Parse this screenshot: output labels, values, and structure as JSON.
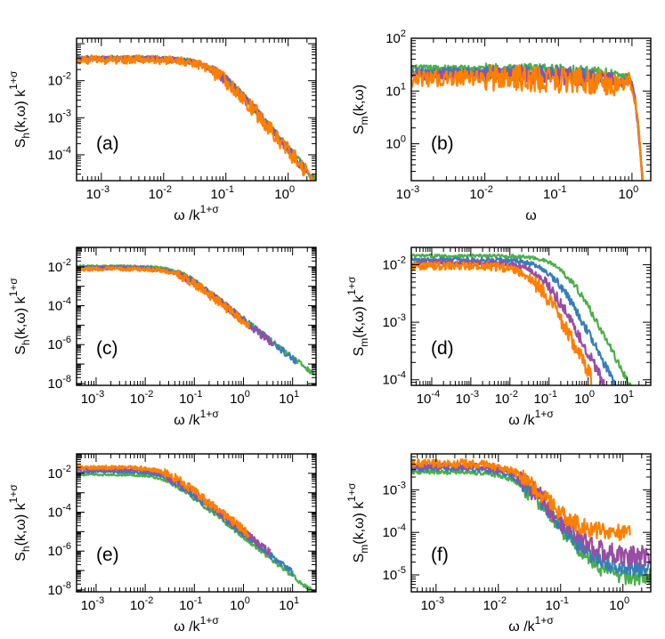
{
  "colors": {
    "green": "#4daf4a",
    "blue": "#377eb8",
    "purple": "#984ea3",
    "orange": "#ff7f00"
  },
  "chart_data": [
    {
      "panel": "(a)",
      "type": "line",
      "xscale": "log",
      "yscale": "log",
      "xlim": [
        0.0004,
        2.8
      ],
      "ylim": [
        2e-05,
        0.14
      ],
      "xticks": [
        {
          "v": 0.001,
          "b": "10",
          "e": "-3"
        },
        {
          "v": 0.01,
          "b": "10",
          "e": "-2"
        },
        {
          "v": 0.1,
          "b": "10",
          "e": "-1"
        },
        {
          "v": 1,
          "b": "10",
          "e": "0"
        }
      ],
      "yticks": [
        {
          "v": 0.0001,
          "b": "10",
          "e": "-4"
        },
        {
          "v": 0.001,
          "b": "10",
          "e": "-3"
        },
        {
          "v": 0.01,
          "b": "10",
          "e": "-2"
        }
      ],
      "xlabel": {
        "main": "ω /k",
        "sup": "1+σ"
      },
      "ylabel": {
        "main": "S",
        "sub": "h",
        "rest": "(k,ω) k",
        "sup": "1+σ"
      },
      "series": [
        {
          "color": "green",
          "plateau": 0.042,
          "knee": 0.06,
          "slope": 2.0,
          "xmax": 2.8,
          "noise": 0.05,
          "late_noise": 0.1
        },
        {
          "color": "blue",
          "plateau": 0.04,
          "knee": 0.06,
          "slope": 2.0,
          "xmax": 2.5,
          "noise": 0.06,
          "late_noise": 0.12
        },
        {
          "color": "purple",
          "plateau": 0.039,
          "knee": 0.06,
          "slope": 2.0,
          "xmax": 2.0,
          "noise": 0.08,
          "late_noise": 0.14
        },
        {
          "color": "orange",
          "plateau": 0.037,
          "knee": 0.06,
          "slope": 2.0,
          "xmax": 2.5,
          "noise": 0.12,
          "late_noise": 0.22
        }
      ]
    },
    {
      "panel": "(b)",
      "type": "line",
      "xscale": "log",
      "yscale": "log",
      "xlim": [
        0.001,
        1.8
      ],
      "ylim": [
        0.2,
        100
      ],
      "xticks": [
        {
          "v": 0.001,
          "b": "10",
          "e": "-3"
        },
        {
          "v": 0.01,
          "b": "10",
          "e": "-2"
        },
        {
          "v": 0.1,
          "b": "10",
          "e": "-1"
        },
        {
          "v": 1,
          "b": "10",
          "e": "0"
        }
      ],
      "yticks": [
        {
          "v": 1,
          "b": "10",
          "e": "0"
        },
        {
          "v": 10,
          "b": "10",
          "e": "1"
        },
        {
          "v": 100,
          "b": "10",
          "e": "2"
        }
      ],
      "xlabel": {
        "main": "ω",
        "sup": ""
      },
      "ylabel": {
        "main": "S",
        "sub": "m",
        "rest": "(k,ω)",
        "sup": ""
      },
      "series": [
        {
          "color": "green",
          "start": 27,
          "peak_x": 0.9,
          "peak_y": 17,
          "noise": 0.06
        },
        {
          "color": "blue",
          "start": 23,
          "peak_x": 0.9,
          "peak_y": 17,
          "noise": 0.08
        },
        {
          "color": "purple",
          "start": 20,
          "peak_x": 0.9,
          "peak_y": 17,
          "noise": 0.1
        },
        {
          "color": "orange",
          "start": 17.5,
          "peak_x": 0.9,
          "peak_y": 17,
          "noise": 0.16
        }
      ]
    },
    {
      "panel": "(c)",
      "type": "line",
      "xscale": "log",
      "yscale": "log",
      "xlim": [
        0.0004,
        30
      ],
      "ylim": [
        8e-09,
        0.1
      ],
      "xticks": [
        {
          "v": 0.001,
          "b": "10",
          "e": "-3"
        },
        {
          "v": 0.01,
          "b": "10",
          "e": "-2"
        },
        {
          "v": 0.1,
          "b": "10",
          "e": "-1"
        },
        {
          "v": 1,
          "b": "10",
          "e": "0"
        },
        {
          "v": 10,
          "b": "10",
          "e": "1"
        }
      ],
      "yticks": [
        {
          "v": 1e-08,
          "b": "10",
          "e": "-8"
        },
        {
          "v": 1e-06,
          "b": "10",
          "e": "-6"
        },
        {
          "v": 0.0001,
          "b": "10",
          "e": "-4"
        },
        {
          "v": 0.01,
          "b": "10",
          "e": "-2"
        }
      ],
      "xlabel": {
        "main": "ω /k",
        "sup": "1+σ"
      },
      "ylabel": {
        "main": "S",
        "sub": "h",
        "rest": "(k,ω) k",
        "sup": "1+σ"
      },
      "series": [
        {
          "color": "green",
          "plateau": 0.011,
          "knee": 0.045,
          "slope": 2.0,
          "xmax": 28,
          "noise": 0.05,
          "late_noise": 0.12
        },
        {
          "color": "blue",
          "plateau": 0.0095,
          "knee": 0.045,
          "slope": 2.0,
          "xmax": 12,
          "noise": 0.06,
          "late_noise": 0.18
        },
        {
          "color": "purple",
          "plateau": 0.0085,
          "knee": 0.045,
          "slope": 2.0,
          "xmax": 4,
          "noise": 0.08,
          "late_noise": 0.2
        },
        {
          "color": "orange",
          "plateau": 0.0078,
          "knee": 0.045,
          "slope": 2.0,
          "xmax": 1.3,
          "noise": 0.1,
          "late_noise": 0.24
        }
      ]
    },
    {
      "panel": "(d)",
      "type": "line",
      "xscale": "log",
      "yscale": "log",
      "xlim": [
        3e-05,
        40
      ],
      "ylim": [
        8e-05,
        0.02
      ],
      "xticks": [
        {
          "v": 0.0001,
          "b": "10",
          "e": "-4"
        },
        {
          "v": 0.001,
          "b": "10",
          "e": "-3"
        },
        {
          "v": 0.01,
          "b": "10",
          "e": "-2"
        },
        {
          "v": 0.1,
          "b": "10",
          "e": "-1"
        },
        {
          "v": 1,
          "b": "10",
          "e": "0"
        },
        {
          "v": 10,
          "b": "10",
          "e": "1"
        }
      ],
      "yticks": [
        {
          "v": 0.0001,
          "b": "10",
          "e": "-4"
        },
        {
          "v": 0.001,
          "b": "10",
          "e": "-3"
        },
        {
          "v": 0.01,
          "b": "10",
          "e": "-2"
        }
      ],
      "xlabel": {
        "main": "ω /k",
        "sup": "1+σ"
      },
      "ylabel": {
        "main": "S",
        "sub": "m",
        "rest": "(k,ω) k",
        "sup": "1+σ"
      },
      "series": [
        {
          "color": "green",
          "plateau": 0.0142,
          "knee": 0.25,
          "slope": 1.35,
          "xmax": 30,
          "noise": 0.03,
          "late_noise": 0.06
        },
        {
          "color": "blue",
          "plateau": 0.0122,
          "knee": 0.12,
          "slope": 1.35,
          "xmax": 10,
          "noise": 0.04,
          "late_noise": 0.08
        },
        {
          "color": "purple",
          "plateau": 0.0108,
          "knee": 0.07,
          "slope": 1.35,
          "xmax": 3.5,
          "noise": 0.05,
          "late_noise": 0.1
        },
        {
          "color": "orange",
          "plateau": 0.0095,
          "knee": 0.045,
          "slope": 1.35,
          "xmax": 1.2,
          "noise": 0.07,
          "late_noise": 0.14
        }
      ]
    },
    {
      "panel": "(e)",
      "type": "line",
      "xscale": "log",
      "yscale": "log",
      "xlim": [
        0.0004,
        30
      ],
      "ylim": [
        8e-09,
        0.1
      ],
      "xticks": [
        {
          "v": 0.001,
          "b": "10",
          "e": "-3"
        },
        {
          "v": 0.01,
          "b": "10",
          "e": "-2"
        },
        {
          "v": 0.1,
          "b": "10",
          "e": "-1"
        },
        {
          "v": 1,
          "b": "10",
          "e": "0"
        },
        {
          "v": 10,
          "b": "10",
          "e": "1"
        }
      ],
      "yticks": [
        {
          "v": 1e-08,
          "b": "10",
          "e": "-8"
        },
        {
          "v": 1e-06,
          "b": "10",
          "e": "-6"
        },
        {
          "v": 0.0001,
          "b": "10",
          "e": "-4"
        },
        {
          "v": 0.01,
          "b": "10",
          "e": "-2"
        }
      ],
      "xlabel": {
        "main": "ω /k",
        "sup": "1+σ"
      },
      "ylabel": {
        "main": "S",
        "sub": "h",
        "rest": "(k,ω) k",
        "sup": "1+σ"
      },
      "series": [
        {
          "color": "green",
          "plateau": 0.0085,
          "knee": 0.025,
          "slope": 2.0,
          "xmax": 28,
          "noise": 0.05,
          "late_noise": 0.12
        },
        {
          "color": "blue",
          "plateau": 0.012,
          "knee": 0.025,
          "slope": 2.0,
          "xmax": 10,
          "noise": 0.06,
          "late_noise": 0.18
        },
        {
          "color": "purple",
          "plateau": 0.016,
          "knee": 0.025,
          "slope": 2.0,
          "xmax": 3.5,
          "noise": 0.08,
          "late_noise": 0.2
        },
        {
          "color": "orange",
          "plateau": 0.02,
          "knee": 0.025,
          "slope": 2.0,
          "xmax": 1.3,
          "noise": 0.1,
          "late_noise": 0.24
        }
      ]
    },
    {
      "panel": "(f)",
      "type": "line",
      "xscale": "log",
      "yscale": "log",
      "xlim": [
        0.0004,
        2.8
      ],
      "ylim": [
        4e-06,
        0.007
      ],
      "xticks": [
        {
          "v": 0.001,
          "b": "10",
          "e": "-3"
        },
        {
          "v": 0.01,
          "b": "10",
          "e": "-2"
        },
        {
          "v": 0.1,
          "b": "10",
          "e": "-1"
        },
        {
          "v": 1,
          "b": "10",
          "e": "0"
        }
      ],
      "yticks": [
        {
          "v": 1e-05,
          "b": "10",
          "e": "-5"
        },
        {
          "v": 0.0001,
          "b": "10",
          "e": "-4"
        },
        {
          "v": 0.001,
          "b": "10",
          "e": "-3"
        }
      ],
      "xlabel": {
        "main": "ω /k",
        "sup": "1+σ"
      },
      "ylabel": {
        "main": "S",
        "sub": "m",
        "rest": "(k,ω) k",
        "sup": "1+σ"
      },
      "series": [
        {
          "color": "green",
          "plateau": 0.0026,
          "knee": 0.022,
          "slope": 2.0,
          "floor": 8.5e-06,
          "xmax": 2.8,
          "noise": 0.05,
          "late_noise": 0.2
        },
        {
          "color": "blue",
          "plateau": 0.0031,
          "knee": 0.022,
          "slope": 2.0,
          "floor": 1.4e-05,
          "xmax": 2.6,
          "noise": 0.06,
          "late_noise": 0.2
        },
        {
          "color": "purple",
          "plateau": 0.0036,
          "knee": 0.022,
          "slope": 2.0,
          "floor": 2.8e-05,
          "xmax": 2.7,
          "noise": 0.08,
          "late_noise": 0.25
        },
        {
          "color": "orange",
          "plateau": 0.0041,
          "knee": 0.022,
          "slope": 2.0,
          "floor": 0.0001,
          "xmax": 1.3,
          "noise": 0.1,
          "late_noise": 0.2
        }
      ]
    }
  ]
}
